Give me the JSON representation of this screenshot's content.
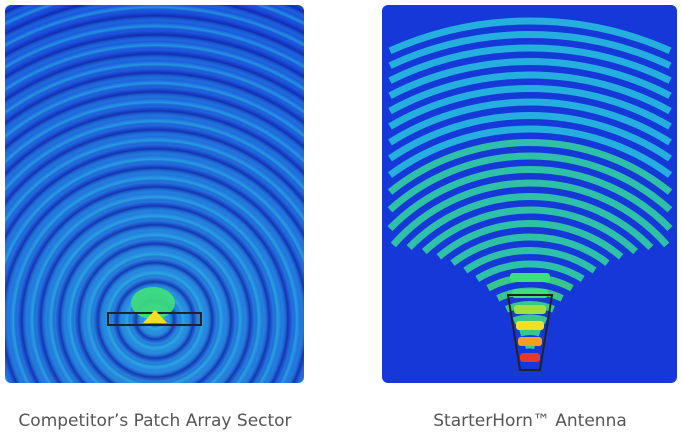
{
  "panels": [
    {
      "caption": "Competitor’s Patch Array Sector",
      "pattern": "broad-radial-wavefronts",
      "colormap": [
        "#1236d8",
        "#22c8d8",
        "#3ee07a",
        "#f2e020"
      ]
    },
    {
      "caption": "StarterHorn™ Antenna",
      "pattern": "narrow-directional-beam",
      "colormap": [
        "#1236d8",
        "#22c8d8",
        "#3ee07a",
        "#f2e020",
        "#e43a2a"
      ]
    }
  ]
}
